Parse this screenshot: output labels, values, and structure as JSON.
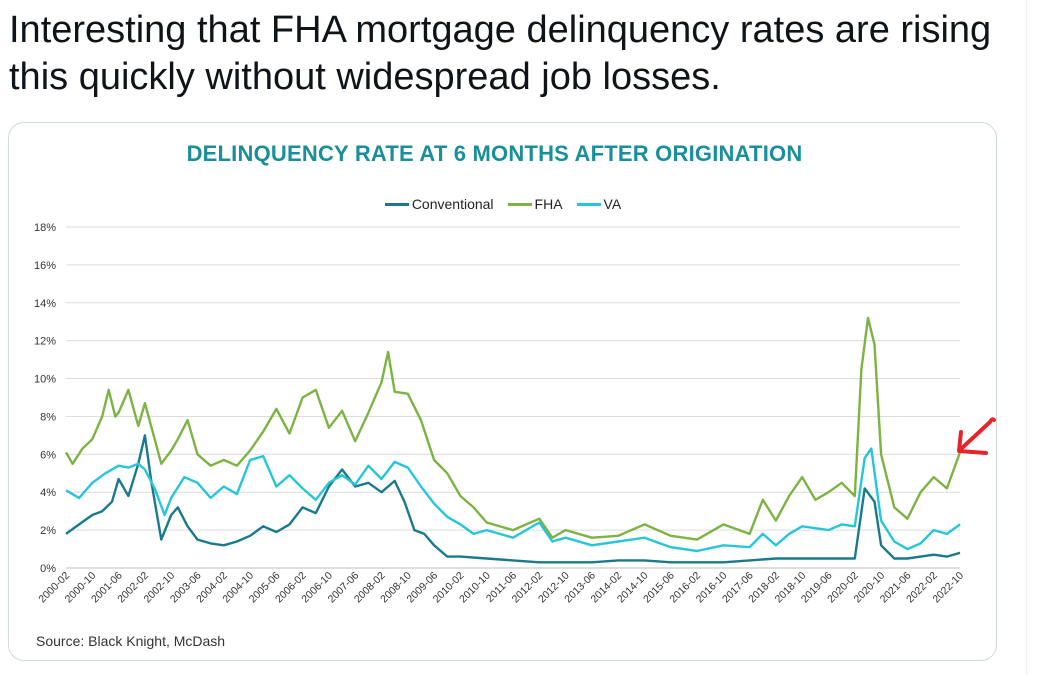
{
  "tweet": {
    "text": "Interesting that FHA mortgage delinquency rates are rising this quickly without widespread job losses."
  },
  "colors": {
    "conventional": "#1a7a8c",
    "fha": "#7cb342",
    "va": "#26c6da",
    "title": "#1a8f9c",
    "annotation": "#e8232a"
  },
  "icons": {
    "annotation": "red-arrow-icon"
  },
  "chart_data": {
    "type": "line",
    "title": "DELINQUENCY RATE AT 6 MONTHS AFTER ORIGINATION",
    "source": "Source: Black Knight, McDash",
    "xlabel": "",
    "ylabel": "",
    "ylim": [
      0,
      18
    ],
    "yticks": [
      "0%",
      "2%",
      "4%",
      "6%",
      "8%",
      "10%",
      "12%",
      "14%",
      "16%",
      "18%"
    ],
    "grid": true,
    "legend_position": "top-center",
    "x_start": "2000-02",
    "x_end": "2022-10",
    "x_tick_labels": [
      "2000-02",
      "2000-10",
      "2001-06",
      "2002-02",
      "2002-10",
      "2003-06",
      "2004-02",
      "2004-10",
      "2005-06",
      "2006-02",
      "2006-10",
      "2007-06",
      "2008-02",
      "2008-10",
      "2009-06",
      "2010-02",
      "2010-10",
      "2011-06",
      "2012-02",
      "2012-10",
      "2013-06",
      "2014-02",
      "2014-10",
      "2015-06",
      "2016-02",
      "2016-10",
      "2017-06",
      "2018-02",
      "2018-10",
      "2019-06",
      "2020-02",
      "2020-10",
      "2021-06",
      "2022-02",
      "2022-10"
    ],
    "series": [
      {
        "name": "Conventional",
        "points": [
          [
            "2000-02",
            1.8
          ],
          [
            "2000-06",
            2.3
          ],
          [
            "2000-10",
            2.8
          ],
          [
            "2001-01",
            3.0
          ],
          [
            "2001-04",
            3.5
          ],
          [
            "2001-06",
            4.7
          ],
          [
            "2001-09",
            3.8
          ],
          [
            "2001-12",
            5.5
          ],
          [
            "2002-02",
            7.0
          ],
          [
            "2002-04",
            4.5
          ],
          [
            "2002-07",
            1.5
          ],
          [
            "2002-10",
            2.8
          ],
          [
            "2002-12",
            3.2
          ],
          [
            "2003-03",
            2.2
          ],
          [
            "2003-06",
            1.5
          ],
          [
            "2003-10",
            1.3
          ],
          [
            "2004-02",
            1.2
          ],
          [
            "2004-06",
            1.4
          ],
          [
            "2004-10",
            1.7
          ],
          [
            "2005-02",
            2.2
          ],
          [
            "2005-06",
            1.9
          ],
          [
            "2005-10",
            2.3
          ],
          [
            "2006-02",
            3.2
          ],
          [
            "2006-06",
            2.9
          ],
          [
            "2006-10",
            4.3
          ],
          [
            "2007-02",
            5.2
          ],
          [
            "2007-06",
            4.3
          ],
          [
            "2007-10",
            4.5
          ],
          [
            "2008-02",
            4.0
          ],
          [
            "2008-06",
            4.6
          ],
          [
            "2008-09",
            3.5
          ],
          [
            "2008-12",
            2.0
          ],
          [
            "2009-03",
            1.8
          ],
          [
            "2009-06",
            1.2
          ],
          [
            "2009-10",
            0.6
          ],
          [
            "2010-02",
            0.6
          ],
          [
            "2010-10",
            0.5
          ],
          [
            "2011-06",
            0.4
          ],
          [
            "2012-02",
            0.3
          ],
          [
            "2012-10",
            0.3
          ],
          [
            "2013-06",
            0.3
          ],
          [
            "2014-02",
            0.4
          ],
          [
            "2014-10",
            0.4
          ],
          [
            "2015-06",
            0.3
          ],
          [
            "2016-02",
            0.3
          ],
          [
            "2016-10",
            0.3
          ],
          [
            "2017-06",
            0.4
          ],
          [
            "2018-02",
            0.5
          ],
          [
            "2018-10",
            0.5
          ],
          [
            "2019-06",
            0.5
          ],
          [
            "2020-02",
            0.5
          ],
          [
            "2020-05",
            4.2
          ],
          [
            "2020-08",
            3.5
          ],
          [
            "2020-10",
            1.2
          ],
          [
            "2021-02",
            0.5
          ],
          [
            "2021-06",
            0.5
          ],
          [
            "2022-02",
            0.7
          ],
          [
            "2022-06",
            0.6
          ],
          [
            "2022-10",
            0.8
          ]
        ]
      },
      {
        "name": "FHA",
        "points": [
          [
            "2000-02",
            6.1
          ],
          [
            "2000-04",
            5.5
          ],
          [
            "2000-07",
            6.3
          ],
          [
            "2000-10",
            6.8
          ],
          [
            "2001-01",
            8.0
          ],
          [
            "2001-03",
            9.4
          ],
          [
            "2001-05",
            8.0
          ],
          [
            "2001-06",
            8.2
          ],
          [
            "2001-09",
            9.4
          ],
          [
            "2001-12",
            7.5
          ],
          [
            "2002-02",
            8.7
          ],
          [
            "2002-05",
            6.8
          ],
          [
            "2002-07",
            5.5
          ],
          [
            "2002-10",
            6.2
          ],
          [
            "2002-12",
            6.8
          ],
          [
            "2003-03",
            7.8
          ],
          [
            "2003-06",
            6.0
          ],
          [
            "2003-10",
            5.4
          ],
          [
            "2004-02",
            5.7
          ],
          [
            "2004-06",
            5.4
          ],
          [
            "2004-10",
            6.2
          ],
          [
            "2005-02",
            7.2
          ],
          [
            "2005-06",
            8.4
          ],
          [
            "2005-10",
            7.1
          ],
          [
            "2006-02",
            9.0
          ],
          [
            "2006-06",
            9.4
          ],
          [
            "2006-10",
            7.4
          ],
          [
            "2007-02",
            8.3
          ],
          [
            "2007-06",
            6.7
          ],
          [
            "2007-10",
            8.2
          ],
          [
            "2008-02",
            9.8
          ],
          [
            "2008-04",
            11.4
          ],
          [
            "2008-06",
            9.3
          ],
          [
            "2008-10",
            9.2
          ],
          [
            "2009-02",
            7.8
          ],
          [
            "2009-06",
            5.7
          ],
          [
            "2009-10",
            5.0
          ],
          [
            "2010-02",
            3.8
          ],
          [
            "2010-06",
            3.2
          ],
          [
            "2010-10",
            2.4
          ],
          [
            "2011-06",
            2.0
          ],
          [
            "2012-02",
            2.6
          ],
          [
            "2012-06",
            1.6
          ],
          [
            "2012-10",
            2.0
          ],
          [
            "2013-06",
            1.6
          ],
          [
            "2014-02",
            1.7
          ],
          [
            "2014-10",
            2.3
          ],
          [
            "2015-06",
            1.7
          ],
          [
            "2016-02",
            1.5
          ],
          [
            "2016-10",
            2.3
          ],
          [
            "2017-06",
            1.8
          ],
          [
            "2017-10",
            3.6
          ],
          [
            "2018-02",
            2.5
          ],
          [
            "2018-06",
            3.8
          ],
          [
            "2018-10",
            4.8
          ],
          [
            "2019-02",
            3.6
          ],
          [
            "2019-06",
            4.0
          ],
          [
            "2019-10",
            4.5
          ],
          [
            "2020-02",
            3.8
          ],
          [
            "2020-04",
            10.5
          ],
          [
            "2020-06",
            13.2
          ],
          [
            "2020-08",
            11.8
          ],
          [
            "2020-10",
            6.0
          ],
          [
            "2021-02",
            3.2
          ],
          [
            "2021-06",
            2.6
          ],
          [
            "2021-10",
            4.0
          ],
          [
            "2022-02",
            4.8
          ],
          [
            "2022-06",
            4.2
          ],
          [
            "2022-10",
            6.1
          ]
        ]
      },
      {
        "name": "VA",
        "points": [
          [
            "2000-02",
            4.1
          ],
          [
            "2000-06",
            3.7
          ],
          [
            "2000-10",
            4.5
          ],
          [
            "2001-02",
            5.0
          ],
          [
            "2001-06",
            5.4
          ],
          [
            "2001-09",
            5.3
          ],
          [
            "2001-12",
            5.5
          ],
          [
            "2002-02",
            5.2
          ],
          [
            "2002-05",
            4.2
          ],
          [
            "2002-08",
            2.8
          ],
          [
            "2002-10",
            3.7
          ],
          [
            "2003-02",
            4.8
          ],
          [
            "2003-06",
            4.5
          ],
          [
            "2003-10",
            3.7
          ],
          [
            "2004-02",
            4.3
          ],
          [
            "2004-06",
            3.9
          ],
          [
            "2004-10",
            5.7
          ],
          [
            "2005-02",
            5.9
          ],
          [
            "2005-06",
            4.3
          ],
          [
            "2005-10",
            4.9
          ],
          [
            "2006-02",
            4.2
          ],
          [
            "2006-06",
            3.6
          ],
          [
            "2006-10",
            4.5
          ],
          [
            "2007-02",
            4.9
          ],
          [
            "2007-06",
            4.4
          ],
          [
            "2007-10",
            5.4
          ],
          [
            "2008-02",
            4.7
          ],
          [
            "2008-06",
            5.6
          ],
          [
            "2008-10",
            5.3
          ],
          [
            "2009-02",
            4.3
          ],
          [
            "2009-06",
            3.4
          ],
          [
            "2009-10",
            2.7
          ],
          [
            "2010-02",
            2.3
          ],
          [
            "2010-06",
            1.8
          ],
          [
            "2010-10",
            2.0
          ],
          [
            "2011-06",
            1.6
          ],
          [
            "2012-02",
            2.4
          ],
          [
            "2012-06",
            1.4
          ],
          [
            "2012-10",
            1.6
          ],
          [
            "2013-06",
            1.2
          ],
          [
            "2014-02",
            1.4
          ],
          [
            "2014-10",
            1.6
          ],
          [
            "2015-06",
            1.1
          ],
          [
            "2016-02",
            0.9
          ],
          [
            "2016-10",
            1.2
          ],
          [
            "2017-06",
            1.1
          ],
          [
            "2017-10",
            1.8
          ],
          [
            "2018-02",
            1.2
          ],
          [
            "2018-06",
            1.8
          ],
          [
            "2018-10",
            2.2
          ],
          [
            "2019-06",
            2.0
          ],
          [
            "2019-10",
            2.3
          ],
          [
            "2020-02",
            2.2
          ],
          [
            "2020-05",
            5.8
          ],
          [
            "2020-07",
            6.3
          ],
          [
            "2020-10",
            2.5
          ],
          [
            "2021-02",
            1.4
          ],
          [
            "2021-06",
            1.0
          ],
          [
            "2021-10",
            1.3
          ],
          [
            "2022-02",
            2.0
          ],
          [
            "2022-06",
            1.8
          ],
          [
            "2022-10",
            2.3
          ]
        ]
      }
    ]
  }
}
